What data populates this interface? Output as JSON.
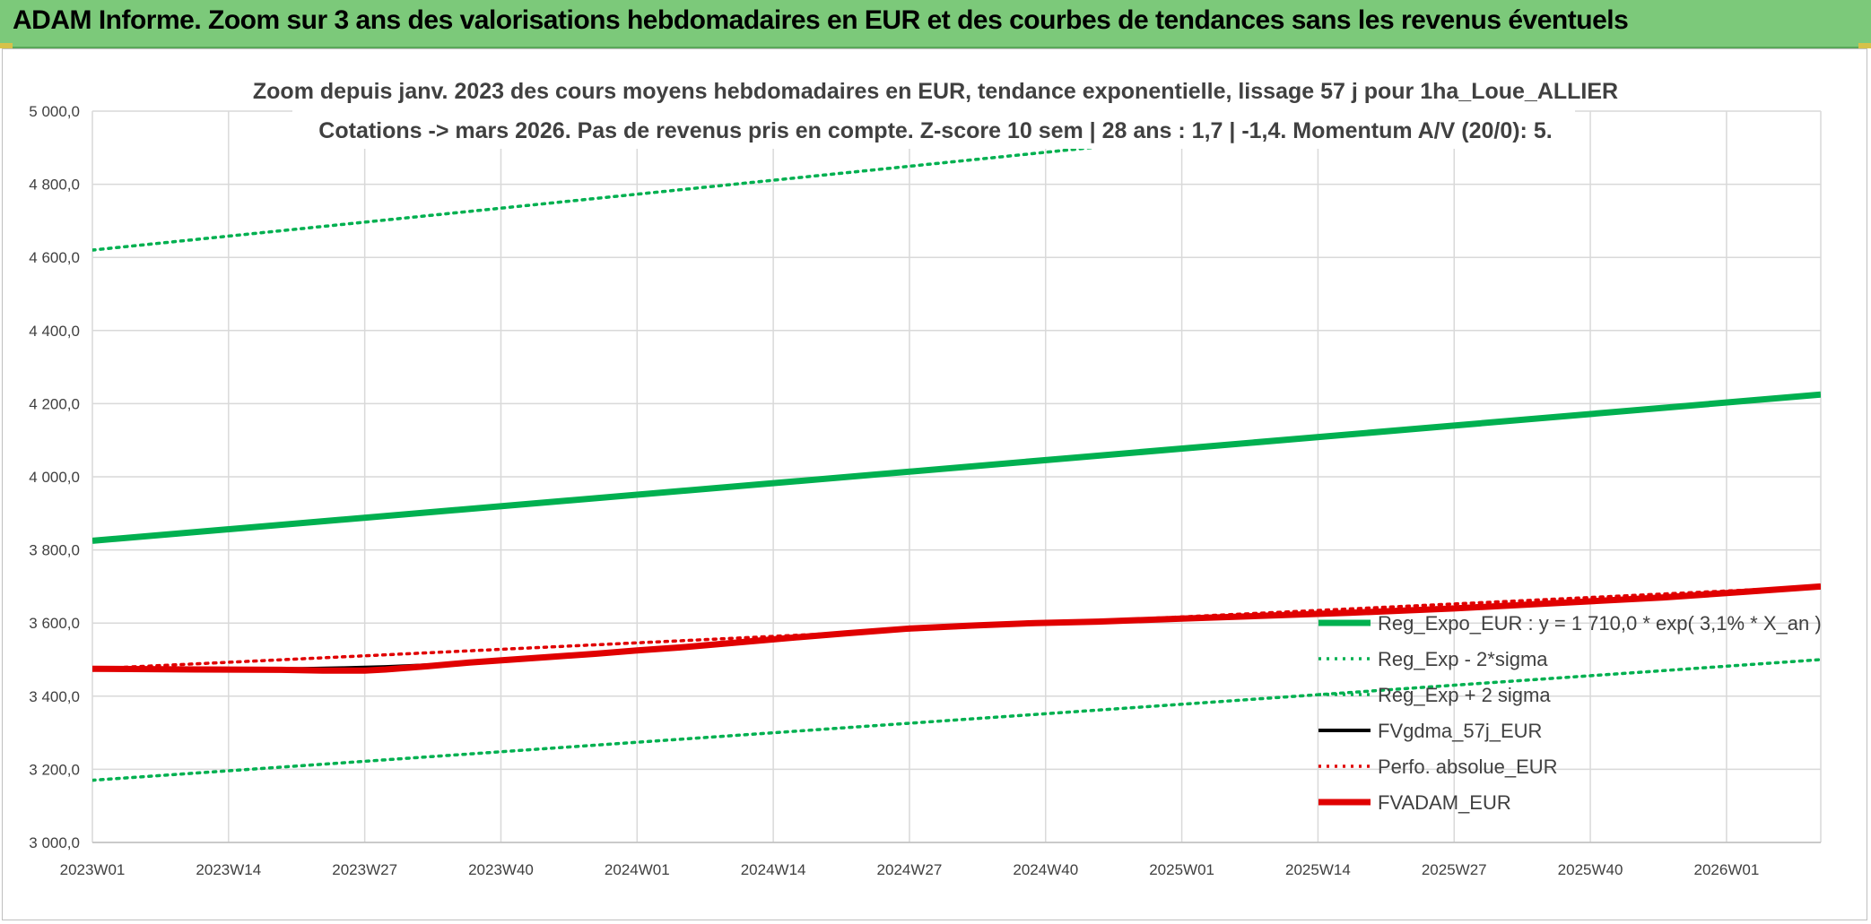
{
  "banner": {
    "title": "ADAM Informe. Zoom sur 3 ans des valorisations hebdomadaires en EUR et des courbes de tendances sans les revenus éventuels"
  },
  "chart_data": {
    "type": "line",
    "title_lines": [
      "Zoom depuis janv. 2023 des cours moyens hebdomadaires en EUR, tendance exponentielle, lissage 57 j pour 1ha_Loue_ALLIER",
      "Cotations -> mars 2026. Pas de revenus pris en compte. Z-score 10 sem | 28 ans : 1,7 | -1,4. Momentum A/V (20/0): 5."
    ],
    "x_tick_labels": [
      "2023W01",
      "2023W14",
      "2023W27",
      "2023W40",
      "2024W01",
      "2024W14",
      "2024W27",
      "2024W40",
      "2025W01",
      "2025W14",
      "2025W27",
      "2025W40",
      "2026W01"
    ],
    "x_range_weeks": [
      0,
      165
    ],
    "ylim": [
      3000,
      5000
    ],
    "y_tick_labels": [
      "3 000,0",
      "3 200,0",
      "3 400,0",
      "3 600,0",
      "3 800,0",
      "4 000,0",
      "4 200,0",
      "4 400,0",
      "4 600,0",
      "4 800,0",
      "5 000,0"
    ],
    "y_ticks": [
      3000,
      3200,
      3400,
      3600,
      3800,
      4000,
      4200,
      4400,
      4600,
      4800,
      5000
    ],
    "grid": true,
    "legend_position": "bottom-right",
    "series": [
      {
        "name": "Reg_Expo_EUR : y = 1 710,0 * exp( 3,1% *  X_an )",
        "color": "#00b050",
        "style": "solid-thick",
        "x": [
          0,
          165
        ],
        "values": [
          3825,
          4225
        ]
      },
      {
        "name": "Reg_Exp - 2*sigma",
        "color": "#00b050",
        "style": "dotted",
        "x": [
          0,
          165
        ],
        "values": [
          3170,
          3500
        ]
      },
      {
        "name": "Reg_Exp + 2 sigma",
        "color": "#00b050",
        "style": "dotted",
        "x": [
          0,
          165
        ],
        "values": [
          4620,
          5105
        ]
      },
      {
        "name": "FVgdma_57j_EUR",
        "color": "#000000",
        "style": "solid",
        "x": [
          0,
          8,
          16,
          20,
          24,
          28,
          32,
          36,
          40,
          44,
          48,
          52,
          56,
          60,
          66,
          72,
          78,
          84,
          90,
          96,
          104,
          112,
          120,
          130,
          140,
          150,
          158,
          165
        ],
        "values": [
          3475,
          3474,
          3474,
          3475,
          3477,
          3480,
          3485,
          3492,
          3500,
          3508,
          3515,
          3525,
          3533,
          3543,
          3558,
          3572,
          3585,
          3594,
          3600,
          3604,
          3612,
          3620,
          3628,
          3640,
          3655,
          3670,
          3685,
          3697
        ]
      },
      {
        "name": "Perfo. absolue_EUR",
        "color": "#e00000",
        "style": "dotted",
        "x": [
          0,
          165
        ],
        "values": [
          3475,
          3700
        ]
      },
      {
        "name": "FVADAM_EUR",
        "color": "#e00000",
        "style": "solid-thick",
        "x": [
          0,
          10,
          18,
          22,
          26,
          28,
          32,
          36,
          40,
          44,
          48,
          52,
          56,
          60,
          66,
          72,
          78,
          84,
          90,
          96,
          104,
          112,
          120,
          130,
          140,
          150,
          158,
          165
        ],
        "values": [
          3475,
          3473,
          3472,
          3470,
          3470,
          3473,
          3482,
          3492,
          3500,
          3508,
          3516,
          3525,
          3533,
          3543,
          3558,
          3572,
          3585,
          3593,
          3600,
          3604,
          3612,
          3620,
          3628,
          3640,
          3655,
          3670,
          3686,
          3700
        ]
      }
    ]
  }
}
